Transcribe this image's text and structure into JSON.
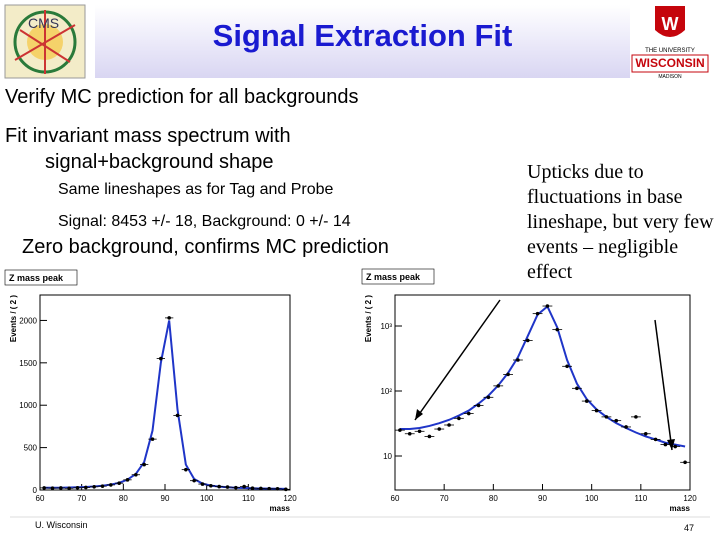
{
  "header": {
    "title": "Signal Extraction Fit",
    "left_logo": "CMS",
    "right_logo": [
      "THE UNIVERSITY",
      "WISCONSIN",
      "MADISON"
    ]
  },
  "bullets": [
    "Verify MC prediction for all backgrounds",
    "Fit invariant mass spectrum with signal+background shape",
    "Same lineshapes as for Tag and Probe",
    "Signal: 8453 +/- 18, Background: 0 +/- 14",
    "Zero background, confirms MC prediction"
  ],
  "callout": "Upticks due to fluctuations in base lineshape, but very few events – negligible effect",
  "footer": {
    "left": "U. Wisconsin",
    "page": "47"
  },
  "chart_data": [
    {
      "type": "scatter",
      "title": "Z mass peak",
      "x_label": "mass",
      "y_label": "Events / ( 2 )",
      "xlim": [
        60,
        120
      ],
      "xticks": [
        60,
        70,
        80,
        90,
        100,
        110,
        120
      ],
      "ylim": [
        0,
        2300
      ],
      "yticks": [
        0,
        500,
        1000,
        1500,
        2000
      ],
      "log_y": false,
      "x": [
        61,
        63,
        65,
        67,
        69,
        71,
        73,
        75,
        77,
        79,
        81,
        83,
        85,
        87,
        89,
        91,
        93,
        95,
        97,
        99,
        101,
        103,
        105,
        107,
        109,
        111,
        113,
        115,
        117,
        119
      ],
      "series": [
        {
          "color": "#000000",
          "values": [
            25,
            22,
            24,
            20,
            26,
            30,
            38,
            45,
            60,
            80,
            120,
            180,
            300,
            600,
            1550,
            2030,
            880,
            240,
            110,
            70,
            50,
            40,
            35,
            28,
            40,
            22,
            18,
            15,
            14,
            8
          ]
        },
        {
          "color": "#1f35c8",
          "values": [
            26,
            26,
            27,
            29,
            32,
            36,
            42,
            50,
            64,
            85,
            122,
            190,
            330,
            700,
            1500,
            2000,
            950,
            300,
            130,
            75,
            52,
            40,
            32,
            27,
            23,
            20,
            18,
            16,
            15,
            14
          ]
        }
      ]
    },
    {
      "type": "scatter",
      "title": "Z mass peak",
      "x_label": "mass",
      "y_label": "Events / ( 2 )",
      "xlim": [
        60,
        120
      ],
      "xticks": [
        60,
        70,
        80,
        90,
        100,
        110,
        120
      ],
      "ylim": [
        3,
        3000
      ],
      "yticks": [
        {
          "value": 10,
          "label": "10"
        },
        {
          "value": 100,
          "label": "10²"
        },
        {
          "value": 1000,
          "label": "10³"
        }
      ],
      "log_y": true,
      "x": [
        61,
        63,
        65,
        67,
        69,
        71,
        73,
        75,
        77,
        79,
        81,
        83,
        85,
        87,
        89,
        91,
        93,
        95,
        97,
        99,
        101,
        103,
        105,
        107,
        109,
        111,
        113,
        115,
        117,
        119
      ],
      "series": [
        {
          "color": "#000000",
          "values": [
            25,
            22,
            24,
            20,
            26,
            30,
            38,
            45,
            60,
            80,
            120,
            180,
            300,
            600,
            1550,
            2030,
            880,
            240,
            110,
            70,
            50,
            40,
            35,
            28,
            40,
            22,
            18,
            15,
            14,
            8
          ]
        },
        {
          "color": "#1f35c8",
          "values": [
            26,
            26,
            27,
            29,
            32,
            36,
            42,
            50,
            64,
            85,
            122,
            190,
            330,
            700,
            1500,
            2000,
            950,
            300,
            130,
            75,
            52,
            40,
            32,
            27,
            23,
            20,
            18,
            16,
            15,
            14
          ]
        }
      ]
    }
  ]
}
